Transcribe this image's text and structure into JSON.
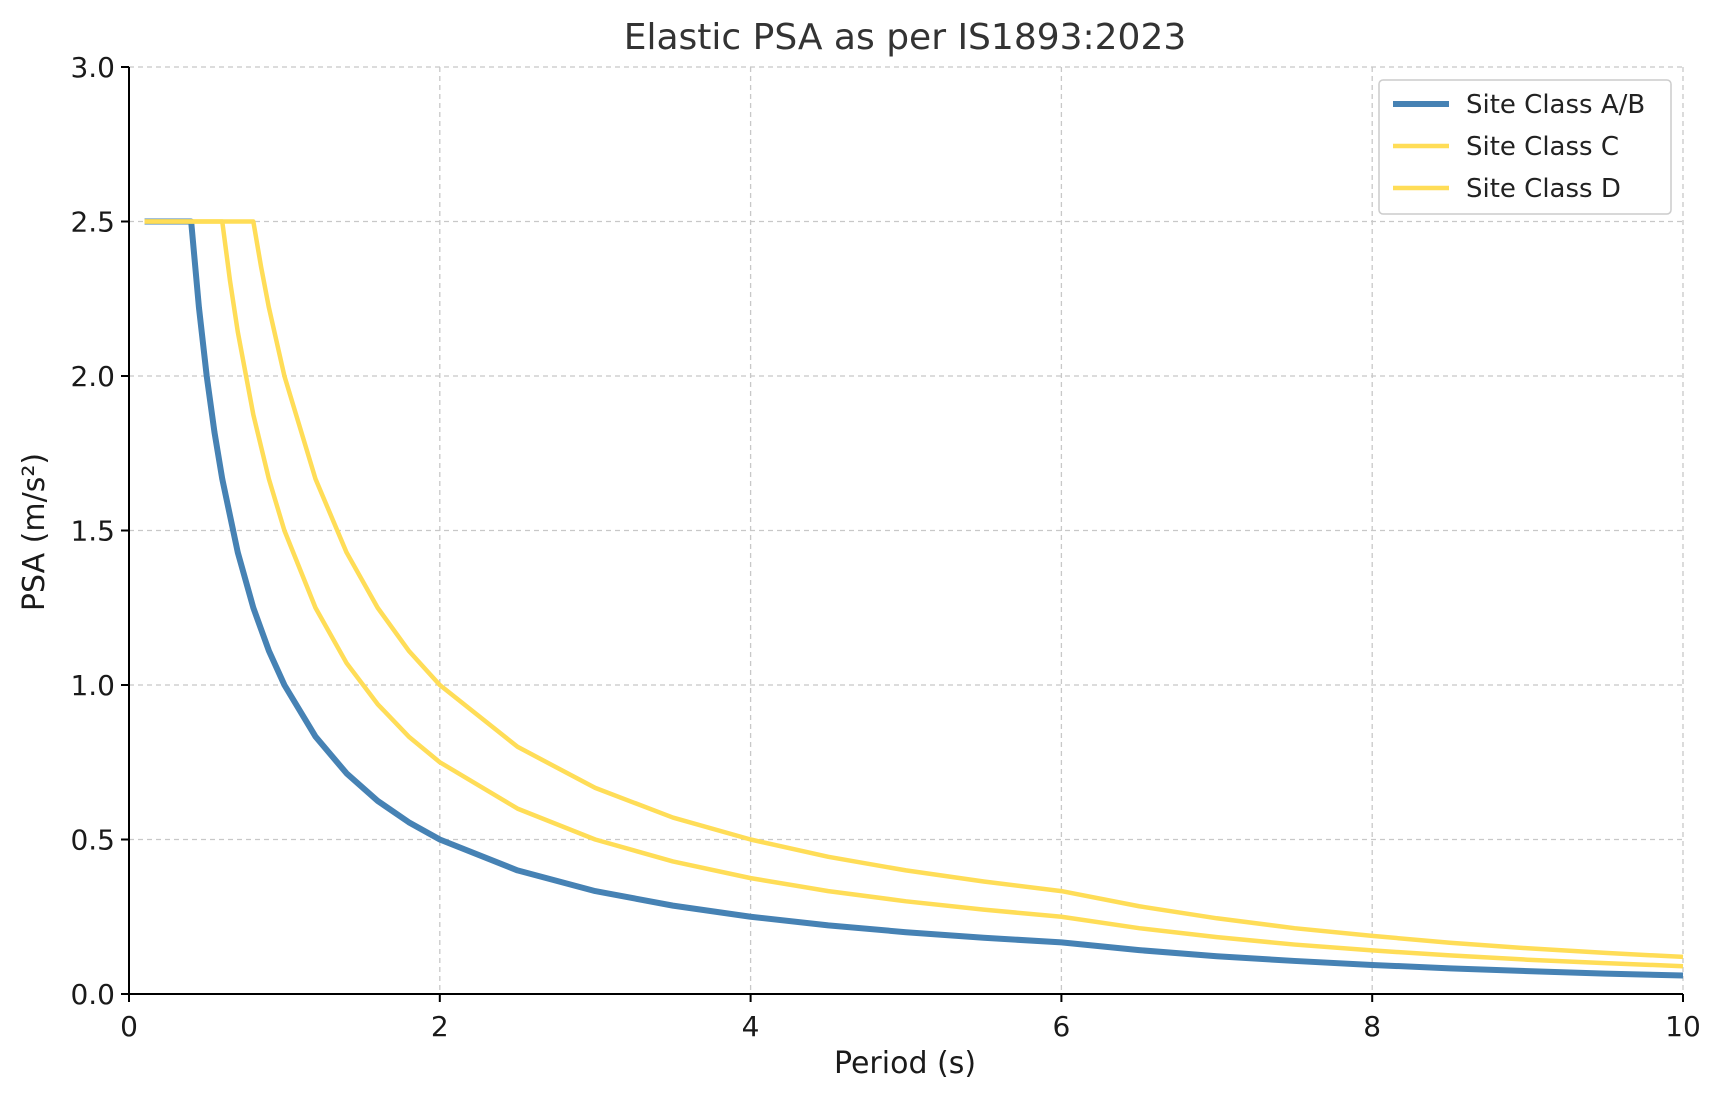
{
  "chart_data": {
    "type": "line",
    "title": "Elastic PSA as per IS1893:2023",
    "xlabel": "Period (s)",
    "ylabel": "PSA (m/s²)",
    "xlim": [
      0,
      10
    ],
    "ylim": [
      0,
      3.0
    ],
    "x_ticks": [
      0,
      2,
      4,
      6,
      8,
      10
    ],
    "x_tick_labels": [
      "0",
      "2",
      "4",
      "6",
      "8",
      "10"
    ],
    "y_ticks": [
      0,
      0.5,
      1.0,
      1.5,
      2.0,
      2.5,
      3.0
    ],
    "y_tick_labels": [
      "0.0",
      "0.5",
      "1.0",
      "1.5",
      "2.0",
      "2.5",
      "3.0"
    ],
    "grid": true,
    "legend_position": "top-right",
    "series": [
      {
        "name": "Site Class A/B",
        "color": "#4682b4",
        "width": 6,
        "x": [
          0.1,
          0.4,
          0.45,
          0.5,
          0.55,
          0.6,
          0.7,
          0.8,
          0.9,
          1.0,
          1.2,
          1.4,
          1.6,
          1.8,
          2.0,
          2.5,
          3.0,
          3.5,
          4.0,
          4.5,
          5.0,
          5.5,
          6.0,
          6.5,
          7.0,
          7.5,
          8.0,
          8.5,
          9.0,
          9.5,
          10.0
        ],
        "y": [
          2.5,
          2.5,
          2.222,
          2.0,
          1.818,
          1.667,
          1.429,
          1.25,
          1.111,
          1.0,
          0.833,
          0.714,
          0.625,
          0.556,
          0.5,
          0.4,
          0.333,
          0.286,
          0.25,
          0.222,
          0.2,
          0.182,
          0.167,
          0.142,
          0.122,
          0.107,
          0.094,
          0.083,
          0.074,
          0.066,
          0.06
        ]
      },
      {
        "name": "Site Class C",
        "color": "#ffdd57",
        "width": 4.5,
        "x": [
          0.1,
          0.6,
          0.65,
          0.7,
          0.8,
          0.9,
          1.0,
          1.2,
          1.4,
          1.6,
          1.8,
          2.0,
          2.5,
          3.0,
          3.5,
          4.0,
          4.5,
          5.0,
          5.5,
          6.0,
          6.5,
          7.0,
          7.5,
          8.0,
          8.5,
          9.0,
          9.5,
          10.0
        ],
        "y": [
          2.5,
          2.5,
          2.308,
          2.143,
          1.875,
          1.667,
          1.5,
          1.25,
          1.071,
          0.938,
          0.833,
          0.75,
          0.6,
          0.5,
          0.429,
          0.375,
          0.333,
          0.3,
          0.273,
          0.25,
          0.213,
          0.184,
          0.16,
          0.141,
          0.125,
          0.111,
          0.1,
          0.09
        ]
      },
      {
        "name": "Site Class D",
        "color": "#ffdd57",
        "width": 4.5,
        "x": [
          0.1,
          0.8,
          0.85,
          0.9,
          1.0,
          1.2,
          1.4,
          1.6,
          1.8,
          2.0,
          2.5,
          3.0,
          3.5,
          4.0,
          4.5,
          5.0,
          5.5,
          6.0,
          6.5,
          7.0,
          7.5,
          8.0,
          8.5,
          9.0,
          9.5,
          10.0
        ],
        "y": [
          2.5,
          2.5,
          2.353,
          2.222,
          2.0,
          1.667,
          1.429,
          1.25,
          1.111,
          1.0,
          0.8,
          0.667,
          0.571,
          0.5,
          0.444,
          0.4,
          0.364,
          0.333,
          0.284,
          0.245,
          0.213,
          0.188,
          0.166,
          0.148,
          0.133,
          0.12
        ]
      }
    ]
  }
}
